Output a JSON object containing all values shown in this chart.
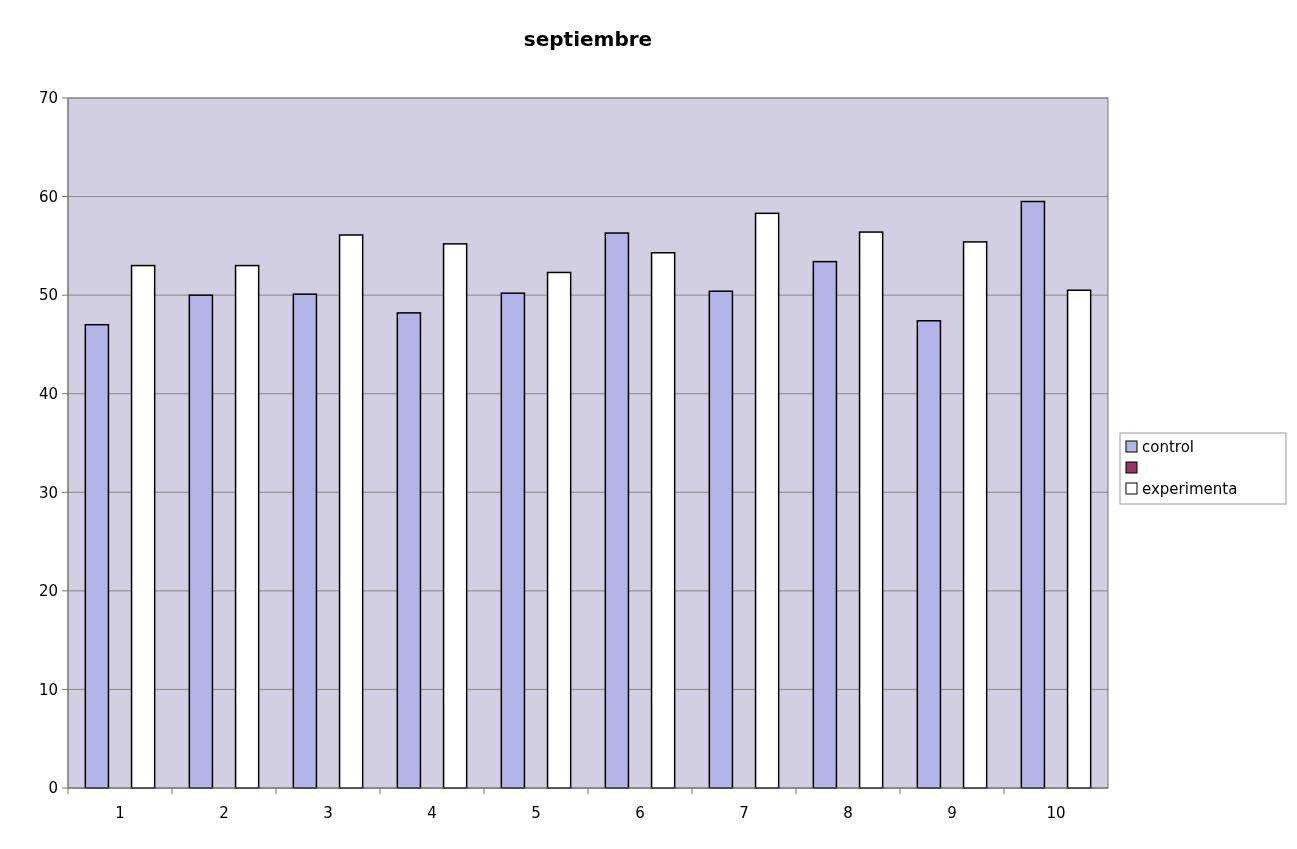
{
  "chart_data": {
    "type": "bar",
    "title": "septiembre",
    "categories": [
      "1",
      "2",
      "3",
      "4",
      "5",
      "6",
      "7",
      "8",
      "9",
      "10"
    ],
    "series": [
      {
        "name": "control",
        "color": "#b4b4e8",
        "values": [
          47,
          50,
          50.1,
          48.2,
          50.2,
          56.3,
          50.4,
          53.4,
          47.4,
          59.5
        ]
      },
      {
        "color": "#993366",
        "values": [
          null,
          null,
          null,
          null,
          null,
          null,
          null,
          null,
          null,
          null
        ]
      },
      {
        "name": "experimenta",
        "color": "#ffffff",
        "values": [
          53,
          53,
          56.1,
          55.2,
          52.3,
          54.3,
          58.3,
          56.4,
          55.4,
          50.5
        ]
      }
    ],
    "ylim": [
      0,
      70
    ],
    "yticks": [
      0,
      10,
      20,
      30,
      40,
      50,
      60,
      70
    ],
    "grid": "y",
    "legend": "right"
  }
}
